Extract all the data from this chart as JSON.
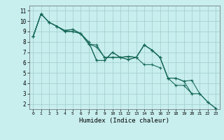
{
  "xlabel": "Humidex (Indice chaleur)",
  "bg_color": "#c8eeee",
  "grid_color": "#a0cccc",
  "line_color": "#1a6b5a",
  "xlim": [
    -0.5,
    23.5
  ],
  "ylim": [
    1.5,
    11.5
  ],
  "xticks": [
    0,
    1,
    2,
    3,
    4,
    5,
    6,
    7,
    8,
    9,
    10,
    11,
    12,
    13,
    14,
    15,
    16,
    17,
    18,
    19,
    20,
    21,
    22,
    23
  ],
  "yticks": [
    2,
    3,
    4,
    5,
    6,
    7,
    8,
    9,
    10,
    11
  ],
  "series": [
    [
      8.5,
      10.7,
      9.9,
      9.5,
      9.0,
      9.0,
      8.8,
      7.8,
      7.7,
      6.5,
      6.5,
      6.5,
      6.3,
      6.5,
      5.8,
      5.8,
      5.5,
      null,
      null,
      null,
      null,
      null,
      null,
      null
    ],
    [
      8.5,
      10.7,
      9.9,
      9.5,
      9.0,
      9.0,
      8.8,
      7.8,
      7.5,
      6.5,
      6.5,
      6.5,
      6.3,
      6.5,
      7.7,
      7.2,
      6.5,
      4.5,
      3.8,
      3.8,
      3.0,
      null,
      null,
      null
    ],
    [
      8.5,
      10.7,
      9.9,
      9.5,
      9.1,
      9.2,
      8.8,
      8.0,
      6.2,
      6.2,
      7.0,
      6.5,
      6.6,
      6.5,
      7.7,
      7.2,
      6.5,
      4.5,
      4.5,
      4.2,
      3.0,
      3.0,
      2.2,
      1.6
    ],
    [
      8.5,
      10.7,
      9.9,
      9.5,
      9.1,
      9.2,
      8.8,
      8.0,
      6.2,
      6.2,
      7.0,
      6.5,
      6.6,
      6.5,
      7.7,
      7.2,
      6.5,
      4.5,
      4.5,
      4.2,
      4.3,
      3.0,
      2.2,
      1.6
    ]
  ]
}
